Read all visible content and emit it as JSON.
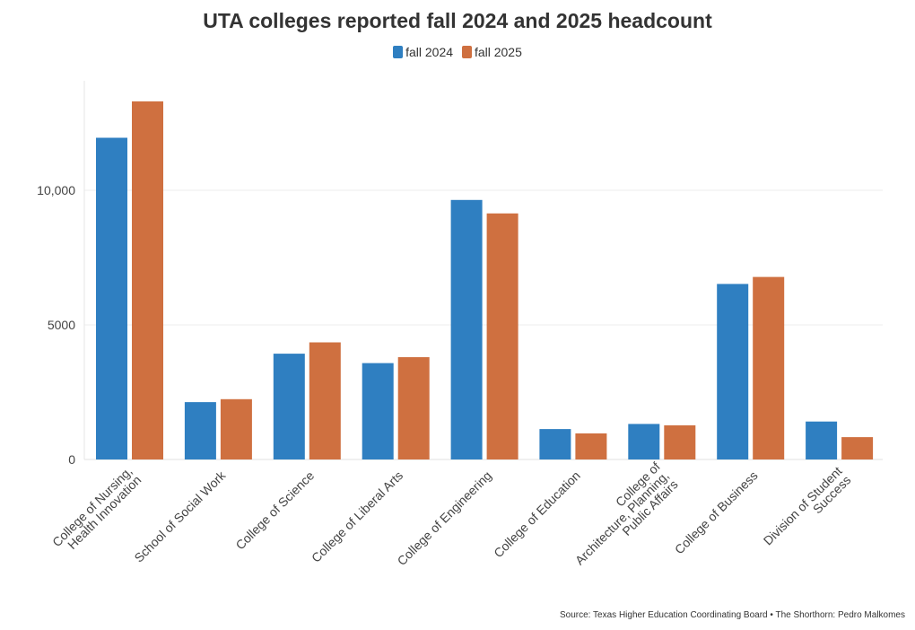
{
  "chart_data": {
    "type": "bar",
    "title": "UTA colleges reported fall 2024 and 2025 headcount",
    "categories": [
      [
        "College of Nursing,",
        "Health Innovation"
      ],
      [
        "School of Social Work"
      ],
      [
        "College of Science"
      ],
      [
        "College of Liberal Arts"
      ],
      [
        "College of Engineering"
      ],
      [
        "College of Education"
      ],
      [
        "College of",
        "Architecture, Planning,",
        "Public Affairs"
      ],
      [
        "College of Business"
      ],
      [
        "Division of Student",
        "Success"
      ]
    ],
    "series": [
      {
        "name": "fall 2024",
        "color": "#2f7fc1",
        "values": [
          11950,
          2130,
          3930,
          3580,
          9640,
          1130,
          1320,
          6520,
          1410
        ]
      },
      {
        "name": "fall 2025",
        "color": "#cf7040",
        "values": [
          13300,
          2240,
          4350,
          3800,
          9140,
          970,
          1270,
          6780,
          830
        ]
      }
    ],
    "y_ticks": [
      {
        "value": 0,
        "label": "0"
      },
      {
        "value": 5000,
        "label": "5000"
      },
      {
        "value": 10000,
        "label": "10,000"
      }
    ],
    "ylim": [
      0,
      14000
    ],
    "xlabel": "",
    "ylabel": "",
    "grid": true,
    "legend_position": "top-center"
  },
  "source": "Source: Texas Higher Education Coordinating Board • The Shorthorn: Pedro Malkomes"
}
